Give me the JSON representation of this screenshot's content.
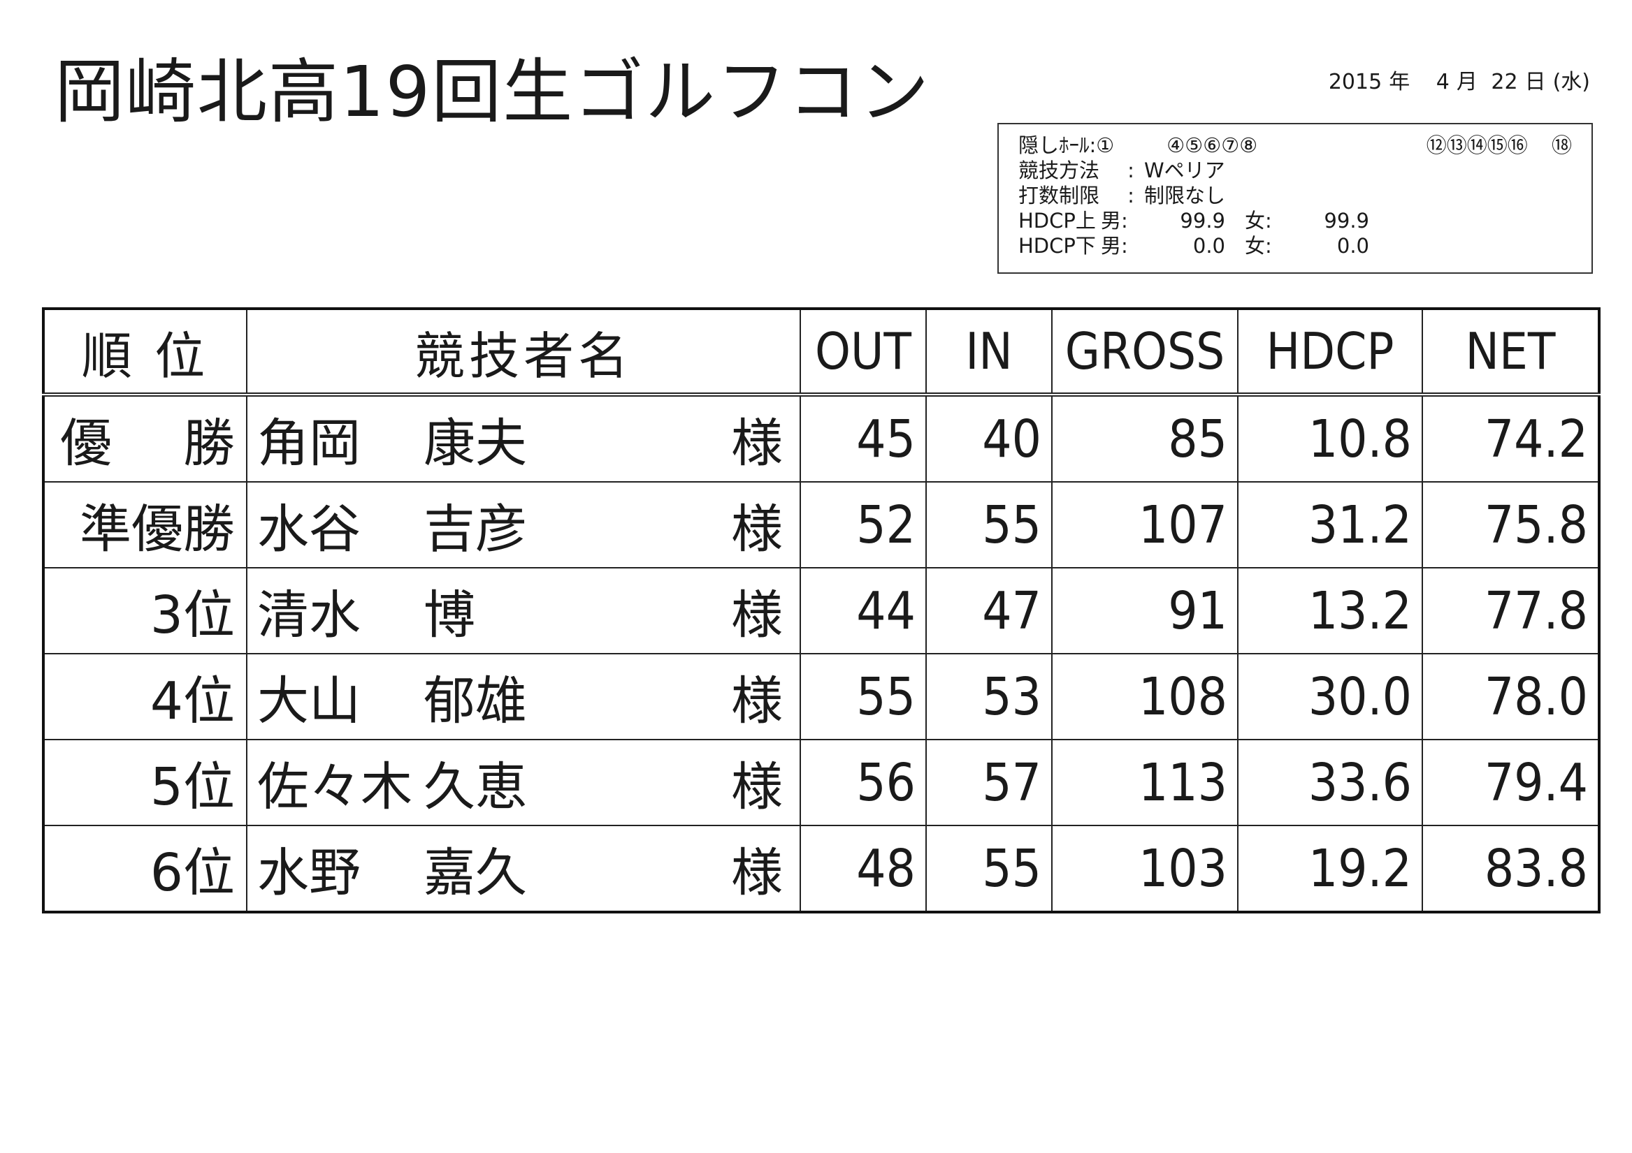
{
  "title": "岡崎北高19回生ゴルフコン",
  "date": {
    "year": "2015",
    "year_unit": "年",
    "month": "4",
    "month_unit": "月",
    "day": "22",
    "day_unit": "日",
    "weekday": "(水)"
  },
  "conditions": {
    "hidden_holes_label": "隠しﾎｰﾙ:",
    "hidden_holes_group1": "①",
    "hidden_holes_group2": "④⑤⑥⑦⑧",
    "hidden_holes_group3": "⑫⑬⑭⑮⑯",
    "hidden_holes_group4": "⑱",
    "method_label": "競技方法",
    "method_value": "Wペリア",
    "stroke_limit_label": "打数制限",
    "stroke_limit_value": "制限なし",
    "separator": ":",
    "hdcp_upper_label": "HDCP上",
    "hdcp_lower_label": "HDCP下",
    "male_label": "男:",
    "female_label": "女:",
    "hdcp_upper_male": "99.9",
    "hdcp_upper_female": "99.9",
    "hdcp_lower_male": "0.0",
    "hdcp_lower_female": "0.0"
  },
  "table": {
    "headers": {
      "rank": "順 位",
      "name": "競技者名",
      "out": "OUT",
      "in": "IN",
      "gross": "GROSS",
      "hdcp": "HDCP",
      "net": "NET"
    },
    "honorific": "様",
    "rows": [
      {
        "rank_a": "優",
        "rank_b": "勝",
        "family": "角岡",
        "given": "康夫",
        "out": "45",
        "in": "40",
        "gross": "85",
        "hdcp": "10.8",
        "net": "74.2"
      },
      {
        "rank": "準優勝",
        "family": "水谷",
        "given": "吉彦",
        "out": "52",
        "in": "55",
        "gross": "107",
        "hdcp": "31.2",
        "net": "75.8"
      },
      {
        "rank": "3位",
        "family": "清水",
        "given": "博",
        "out": "44",
        "in": "47",
        "gross": "91",
        "hdcp": "13.2",
        "net": "77.8"
      },
      {
        "rank": "4位",
        "family": "大山",
        "given": "郁雄",
        "out": "55",
        "in": "53",
        "gross": "108",
        "hdcp": "30.0",
        "net": "78.0"
      },
      {
        "rank": "5位",
        "family": "佐々木",
        "given": "久恵",
        "out": "56",
        "in": "57",
        "gross": "113",
        "hdcp": "33.6",
        "net": "79.4"
      },
      {
        "rank": "6位",
        "family": "水野",
        "given": "嘉久",
        "out": "48",
        "in": "55",
        "gross": "103",
        "hdcp": "19.2",
        "net": "83.8"
      }
    ]
  }
}
